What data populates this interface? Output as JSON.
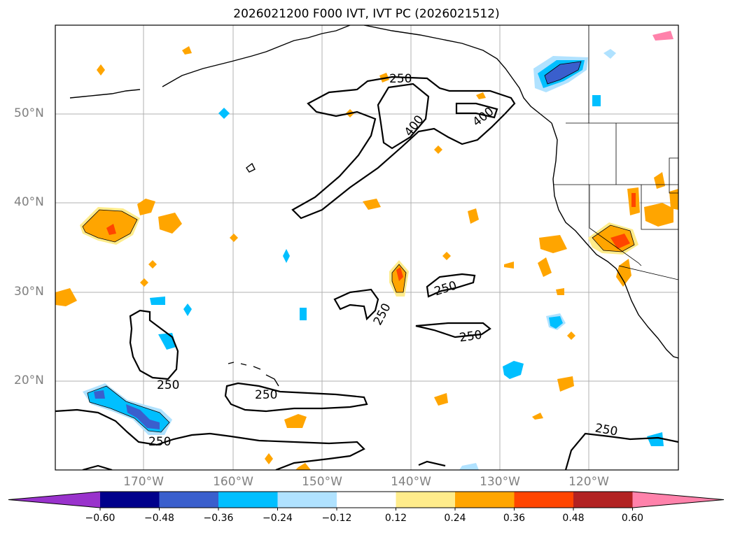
{
  "title": "2026021200 F000 IVT, IVT PC (2026021512)",
  "lat_labels": [
    "50°N",
    "40°N",
    "30°N",
    "20°N"
  ],
  "lon_labels": [
    "170°W",
    "160°W",
    "150°W",
    "140°W",
    "130°W",
    "120°W"
  ],
  "contour_labels": [
    "250",
    "400",
    "400",
    "250",
    "250",
    "250",
    "250",
    "250",
    "250"
  ],
  "colorbar": {
    "ticks": [
      "−0.60",
      "−0.48",
      "−0.36",
      "−0.24",
      "−0.12",
      "0.12",
      "0.24",
      "0.36",
      "0.48",
      "0.60"
    ],
    "colors": [
      "#9932cc",
      "#00008b",
      "#3a5fcd",
      "#00bfff",
      "#b0e2ff",
      "#ffffff",
      "#ffec8b",
      "#ffa500",
      "#ff4500",
      "#b22222",
      "#ff82ab"
    ]
  }
}
